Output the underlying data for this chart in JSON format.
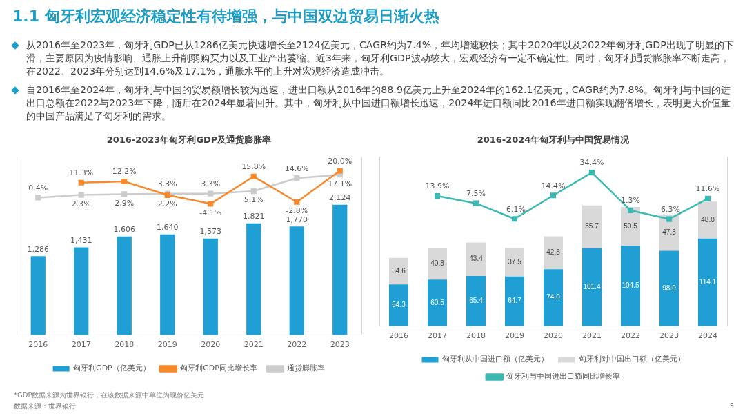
{
  "chart_data": [
    {
      "type": "other",
      "title": "1.1 匈牙利宏观经济稳定性有待增强，与中国双边贸易日渐火热",
      "annotations": [
        "从2016年至2023年，匈牙利GDP已从1286亿美元快速增长至2124亿美元，CAGR约为7.4%，年均增速较快；其中2020年以及2022年匈牙利GDP出现了明显的下滑，主要原因为疫情影响、通胀上升削弱购买力以及工业产出萎缩。近3年来，匈牙利GDP波动较大，宏观经济有一定不确定性。同时，匈牙利通货膨胀率不断走高，在2022、2023年分别达到14.6%及17.1%，通胀水平的上升对宏观经济造成冲击。",
        "自2016年至2024年，匈牙利与中国的贸易额增长较为迅速，进出口额从2016年的88.9亿美元上升至2024年的162.1亿美元，CAGR约为7.8%。匈牙利与中国的进出口总额在2022与2023年下降，随后在2024年显著回升。其中，匈牙利从中国进口额增长迅速，2024年进口额同比2016年进口额实现翻倍增长，表明更大价值量的中国产品满足了匈牙利的需求。"
      ]
    },
    {
      "type": "bar",
      "title": "2016-2023年匈牙利GDP及通货膨胀率",
      "categories": [
        "2016",
        "2017",
        "2018",
        "2019",
        "2020",
        "2021",
        "2022",
        "2023"
      ],
      "series": [
        {
          "name": "匈牙利GDP（亿美元）",
          "type": "bar",
          "color": "#1f9fd4",
          "values": [
            1286,
            1431,
            1606,
            1640,
            1573,
            1821,
            1770,
            2124
          ],
          "value_labels": [
            "1,286",
            "1,431",
            "1,606",
            "1,640",
            "1,573",
            "1,821",
            "1,770",
            "2,124"
          ]
        },
        {
          "name": "匈牙利GDP同比增长率",
          "type": "line",
          "axis": "y2",
          "color": "#f7892b",
          "values": [
            null,
            11.3,
            12.2,
            2.2,
            -4.1,
            15.8,
            -2.8,
            20.0
          ],
          "value_labels": [
            null,
            "11.3%",
            "12.2%",
            "2.2%",
            "-4.1%",
            "15.8%",
            "-2.8%",
            "20.0%"
          ]
        },
        {
          "name": "通货膨胀率",
          "type": "line",
          "axis": "y2",
          "color": "#cccccc",
          "values": [
            0.4,
            2.3,
            2.9,
            3.3,
            3.3,
            5.1,
            14.6,
            17.1
          ],
          "value_labels": [
            "0.4%",
            "2.3%",
            "2.9%",
            "3.3%",
            "3.3%",
            "5.1%",
            "14.6%",
            "17.1%"
          ]
        }
      ],
      "ylim": [
        0,
        2900
      ],
      "y2lim": [
        -100,
        30
      ],
      "tick_labels": "x",
      "legend": "bottom",
      "marker": "square",
      "annotations": [
        "*GDP数据来源为世界银行，在该数据来源中单位为现价亿美元",
        "数据来源：世界银行"
      ]
    },
    {
      "type": "bar",
      "title": "2016-2024年匈牙利与中国贸易情况",
      "categories": [
        "2016",
        "2017",
        "2018",
        "2019",
        "2020",
        "2021",
        "2022",
        "2023",
        "2024"
      ],
      "stacked": true,
      "series": [
        {
          "name": "匈牙利从中国进口额（亿美元）",
          "type": "bar",
          "color": "#1f9fd4",
          "values": [
            54.3,
            60.5,
            65.4,
            64.7,
            74.0,
            101.4,
            104.5,
            98.0,
            114.1
          ],
          "value_labels": [
            "54.3",
            "60.5",
            "65.4",
            "64.7",
            "74.0",
            "101.4",
            "104.5",
            "98.0",
            "114.1"
          ]
        },
        {
          "name": "匈牙利对中国出口额（亿美元）",
          "type": "bar",
          "color": "#d9d9d9",
          "values": [
            34.6,
            40.8,
            43.4,
            37.5,
            42.8,
            55.7,
            50.5,
            47.3,
            48.0
          ],
          "value_labels": [
            "34.6",
            "40.8",
            "43.4",
            "37.5",
            "42.8",
            "55.7",
            "50.5",
            "47.3",
            "48.0"
          ]
        },
        {
          "name": "匈牙利与中国进出口额同比增长率",
          "type": "line",
          "axis": "y2",
          "color": "#3bbab3",
          "values": [
            null,
            13.9,
            7.5,
            -6.1,
            14.4,
            34.4,
            1.3,
            -6.3,
            11.6
          ],
          "value_labels": [
            null,
            "13.9%",
            "7.5%",
            "-6.1%",
            "14.4%",
            "34.4%",
            "1.3%",
            "-6.3%",
            "11.6%"
          ]
        }
      ],
      "ylim": [
        0,
        220
      ],
      "y2lim": [
        -100,
        48
      ],
      "tick_labels": "x",
      "legend": "bottom",
      "marker": "square",
      "annotations": [
        "5"
      ]
    }
  ]
}
